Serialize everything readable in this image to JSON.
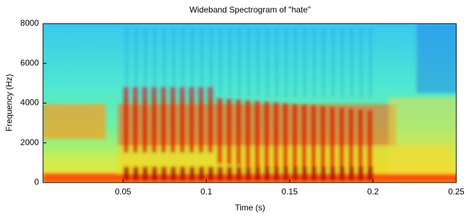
{
  "chart_data": {
    "type": "spectrogram",
    "title": "Wideband Spectrogram of \"hate\"",
    "xlabel": "Time (s)",
    "ylabel": "Frequency (Hz)",
    "xlim": [
      0.002,
      0.25
    ],
    "xticks": [
      0.05,
      0.1,
      0.15,
      0.2,
      0.25
    ],
    "ylim": [
      0,
      8000
    ],
    "yticks": [
      0,
      2000,
      4000,
      6000,
      8000
    ]
  }
}
